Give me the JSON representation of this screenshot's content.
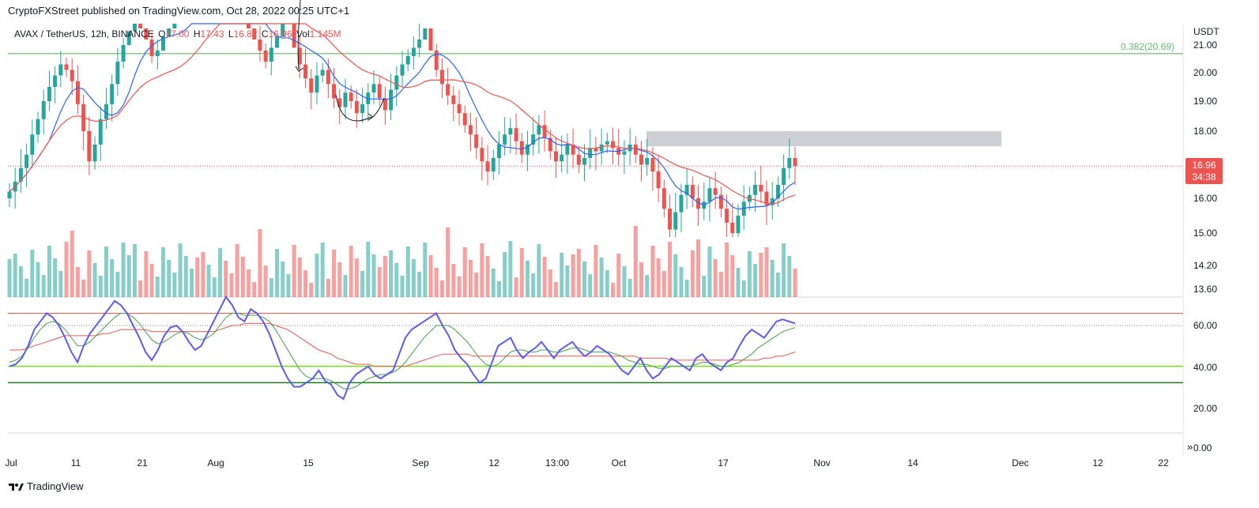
{
  "header": {
    "publisher": "CryptoFXStreet published on TradingView.com, Oct 28, 2022 00:25 UTC+1"
  },
  "legend": {
    "symbol": "AVAX / TetherUS, 12h, BINANCE",
    "o_label": "O",
    "o_value": "17.00",
    "h_label": "H",
    "h_value": "17.43",
    "l_label": "L",
    "l_value": "16.82",
    "c_label": "C",
    "c_value": "16.96",
    "vol_label": "Vol",
    "vol_value": "1.145M"
  },
  "price_tag": {
    "price": "16.96",
    "countdown": "34:38"
  },
  "footer": {
    "brand": "TradingView"
  },
  "colors": {
    "up": "#26a69a",
    "down": "#ef5350",
    "ma_blue": "#2962ff",
    "ma_red": "#ef5350",
    "rsi": "#5b5bf0",
    "rsi_ma_green": "#43a047",
    "rsi_ma_red": "#ef5350",
    "fib": "#4caf50",
    "zone": "#b2b5be",
    "band_lime": "#76e01b",
    "band_green": "#1b7a1b"
  },
  "chart_data": [
    {
      "type": "candlestick",
      "title": "AVAX / TetherUS, 12h, BINANCE",
      "unit_label": "USDT",
      "y_ticks": [
        "21.00",
        "20.00",
        "19.00",
        "18.00",
        "16.00",
        "15.00",
        "14.20",
        "13.60"
      ],
      "y_range": [
        13.4,
        22.0
      ],
      "x_ticks": [
        "Jul",
        "11",
        "21",
        "Aug",
        "15",
        "Sep",
        "12",
        "13:00",
        "Oct",
        "17",
        "Nov",
        "14",
        "Dec",
        "12",
        "22"
      ],
      "fib_level": {
        "label": "0.382(20.69)",
        "value": 20.69
      },
      "resistance_zone": {
        "from": 17.55,
        "to": 18.0
      },
      "last_price": 16.96,
      "closes": [
        16.2,
        16.5,
        16.9,
        17.3,
        17.9,
        18.4,
        19.0,
        19.5,
        19.9,
        20.3,
        20.1,
        19.7,
        18.9,
        18.0,
        17.1,
        17.6,
        18.4,
        18.9,
        19.6,
        20.4,
        21.0,
        21.5,
        21.9,
        21.6,
        21.2,
        20.6,
        20.8,
        21.3,
        21.6,
        21.9,
        22.4,
        22.7,
        22.9,
        22.6,
        22.3,
        22.7,
        23.1,
        23.4,
        23.2,
        22.8,
        22.4,
        22.0,
        21.6,
        21.2,
        20.8,
        20.4,
        20.9,
        21.3,
        21.8,
        22.1,
        20.9,
        20.3,
        19.8,
        19.3,
        19.9,
        20.1,
        19.6,
        19.1,
        18.8,
        19.3,
        19.0,
        18.6,
        18.9,
        19.3,
        19.6,
        19.1,
        18.7,
        19.4,
        19.9,
        20.3,
        20.6,
        20.9,
        21.2,
        21.6,
        20.8,
        20.1,
        19.6,
        19.2,
        18.9,
        18.6,
        18.2,
        17.9,
        17.5,
        17.1,
        16.8,
        17.2,
        17.6,
        17.9,
        18.1,
        17.7,
        17.3,
        17.6,
        17.9,
        18.2,
        17.8,
        17.4,
        17.1,
        17.3,
        17.6,
        17.3,
        17.0,
        17.2,
        17.5,
        17.4,
        17.6,
        17.7,
        17.5,
        17.3,
        17.4,
        17.6,
        17.3,
        17.0,
        17.2,
        16.8,
        16.3,
        15.7,
        15.1,
        15.6,
        16.1,
        16.4,
        16.0,
        15.7,
        15.9,
        16.3,
        16.1,
        15.7,
        15.3,
        15.0,
        15.5,
        15.9,
        16.1,
        16.4,
        16.2,
        15.8,
        16.0,
        16.4,
        16.9,
        17.2,
        16.96
      ],
      "volume_hint": "volume bars in lower band of price pane",
      "moving_averages": [
        "blue MA",
        "red MA"
      ]
    },
    {
      "type": "line",
      "title": "",
      "y_ticks": [
        "60.00",
        "40.00",
        "20.00",
        "0.00"
      ],
      "y_range": [
        0,
        80
      ],
      "levels": [
        {
          "name": "upper",
          "value": 66
        },
        {
          "name": "mid",
          "value": 60
        },
        {
          "name": "lower_lime",
          "value": 40
        },
        {
          "name": "lower_green",
          "value": 32
        }
      ],
      "rsi": [
        40,
        41,
        44,
        50,
        58,
        62,
        66,
        64,
        60,
        54,
        47,
        42,
        50,
        56,
        60,
        64,
        68,
        72,
        70,
        66,
        60,
        54,
        47,
        43,
        48,
        55,
        59,
        60,
        57,
        52,
        48,
        50,
        56,
        62,
        68,
        74,
        70,
        64,
        62,
        68,
        66,
        62,
        56,
        48,
        40,
        34,
        30,
        30,
        32,
        34,
        38,
        33,
        31,
        26,
        24,
        32,
        36,
        38,
        40,
        36,
        34,
        36,
        38,
        46,
        54,
        58,
        60,
        62,
        64,
        66,
        60,
        55,
        48,
        44,
        41,
        36,
        32,
        34,
        42,
        50,
        52,
        54,
        48,
        44,
        47,
        49,
        52,
        48,
        44,
        48,
        50,
        52,
        48,
        45,
        47,
        50,
        48,
        46,
        42,
        38,
        36,
        40,
        44,
        38,
        34,
        36,
        40,
        44,
        42,
        40,
        38,
        44,
        46,
        42,
        40,
        38,
        42,
        44,
        50,
        55,
        58,
        56,
        54,
        58,
        62,
        63,
        62,
        61
      ],
      "rsi_ma_green": [
        42,
        43,
        45,
        49,
        54,
        58,
        61,
        62,
        61,
        58,
        54,
        50,
        50,
        52,
        55,
        58,
        61,
        64,
        66,
        66,
        64,
        61,
        57,
        53,
        51,
        52,
        54,
        56,
        57,
        56,
        54,
        53,
        54,
        56,
        60,
        64,
        66,
        66,
        65,
        65,
        65,
        64,
        62,
        58,
        53,
        48,
        43,
        38,
        35,
        34,
        34,
        34,
        33,
        31,
        29,
        29,
        30,
        32,
        34,
        35,
        36,
        36,
        37,
        39,
        42,
        46,
        50,
        54,
        57,
        60,
        60,
        60,
        58,
        55,
        52,
        48,
        44,
        41,
        40,
        41,
        44,
        47,
        48,
        48,
        47,
        47,
        48,
        48,
        47,
        47,
        48,
        49,
        49,
        48,
        47,
        47,
        47,
        47,
        46,
        45,
        43,
        42,
        41,
        41,
        40,
        39,
        39,
        40,
        40,
        40,
        40,
        41,
        42,
        42,
        41,
        40,
        40,
        41,
        42,
        44,
        46,
        49,
        51,
        53,
        55,
        57,
        58,
        59
      ],
      "rsi_ma_red": [
        48,
        48,
        48,
        49,
        50,
        51,
        52,
        53,
        54,
        55,
        55,
        55,
        55,
        55,
        55,
        56,
        56,
        57,
        58,
        58,
        58,
        58,
        58,
        57,
        57,
        57,
        57,
        57,
        57,
        57,
        57,
        57,
        57,
        57,
        58,
        59,
        60,
        60,
        61,
        61,
        61,
        61,
        61,
        60,
        59,
        58,
        56,
        54,
        52,
        50,
        48,
        47,
        46,
        44,
        43,
        42,
        41,
        41,
        41,
        40,
        40,
        40,
        40,
        40,
        40,
        41,
        42,
        43,
        44,
        45,
        46,
        46,
        46,
        46,
        46,
        45,
        45,
        45,
        45,
        45,
        45,
        45,
        45,
        45,
        45,
        45,
        45,
        45,
        45,
        45,
        45,
        45,
        45,
        45,
        45,
        45,
        45,
        45,
        45,
        45,
        45,
        45,
        44,
        44,
        44,
        44,
        44,
        43,
        43,
        43,
        43,
        43,
        43,
        43,
        43,
        43,
        43,
        43,
        43,
        43,
        43,
        43,
        44,
        44,
        45,
        45,
        46,
        47
      ]
    }
  ]
}
